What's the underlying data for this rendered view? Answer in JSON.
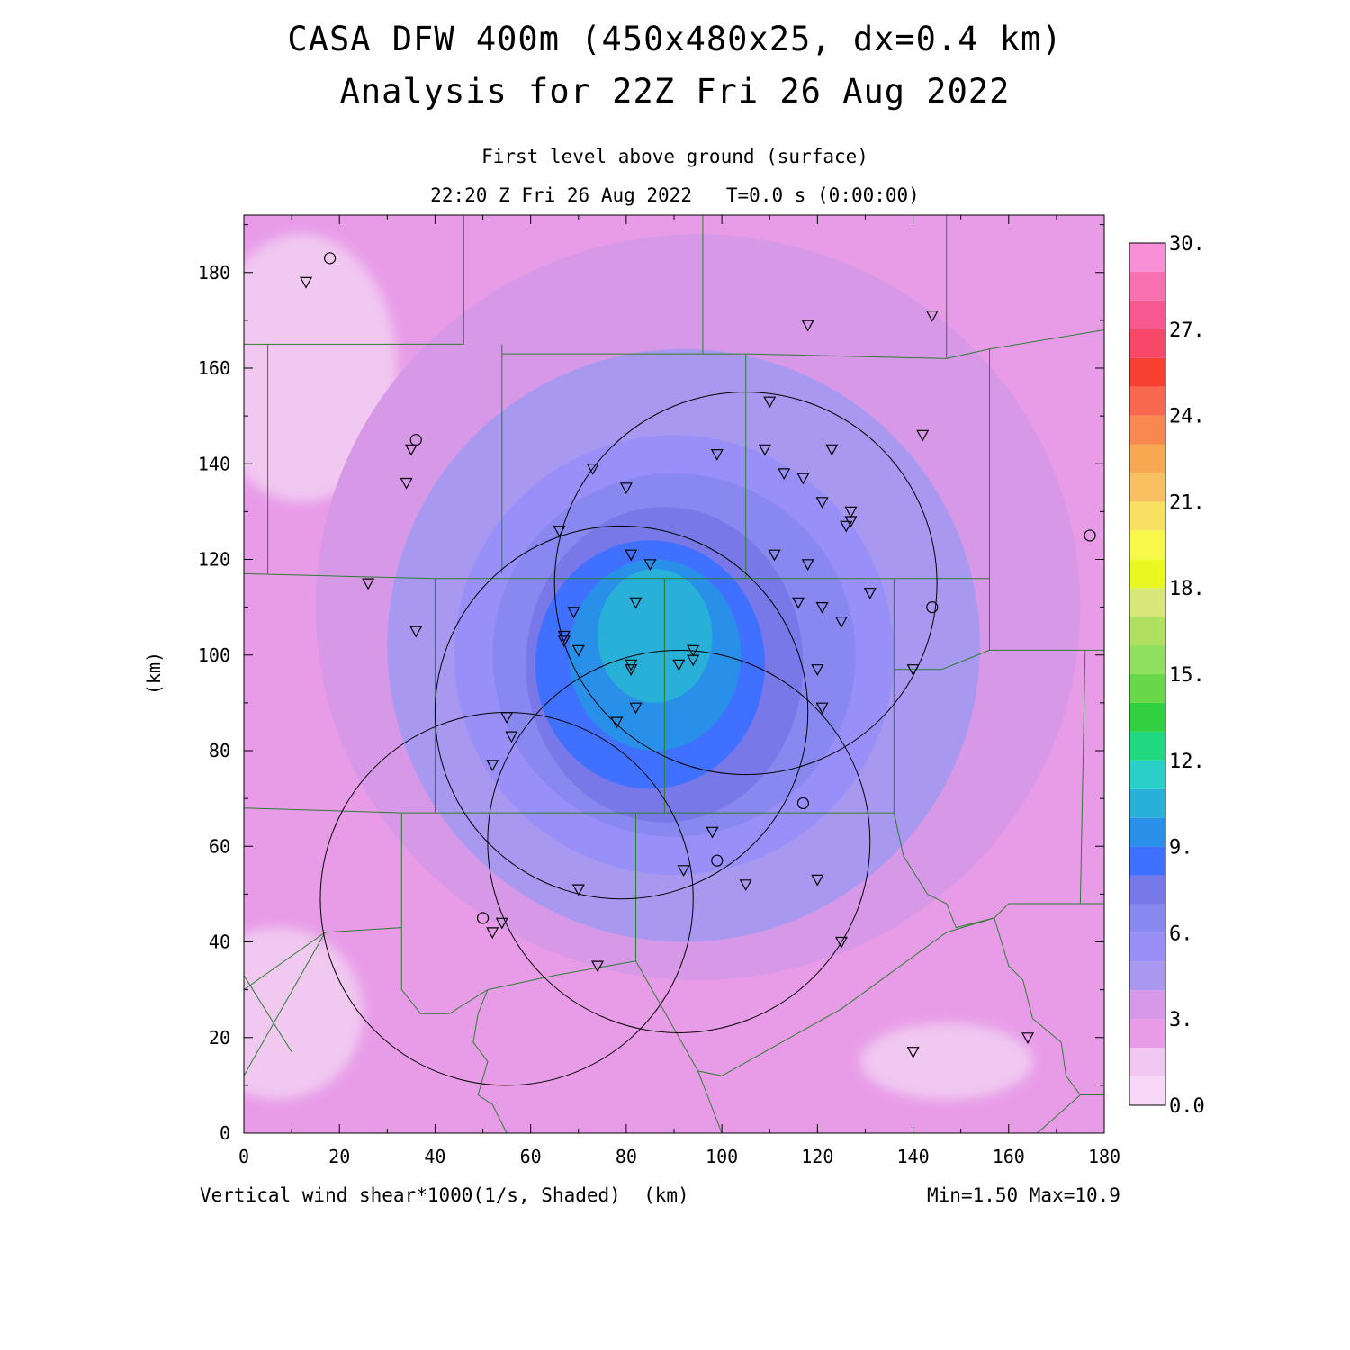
{
  "chart_data": {
    "type": "heatmap",
    "title": "CASA DFW 400m (450x480x25, dx=0.4 km)",
    "subtitle": "Analysis for 22Z Fri 26 Aug 2022",
    "level_label": "First level above ground (surface)",
    "time_label": "22:20 Z Fri 26 Aug 2022   T=0.0 s (0:00:00)",
    "xlabel": "(km)",
    "ylabel": "(km)",
    "field_label": "Vertical wind shear*1000(1/s, Shaded)",
    "stats_label": "Min=1.50 Max=10.9",
    "xlim": [
      0,
      180
    ],
    "ylim": [
      0,
      192
    ],
    "x_ticks": [
      0,
      20,
      40,
      60,
      80,
      100,
      120,
      140,
      160,
      180
    ],
    "y_ticks": [
      0,
      20,
      40,
      60,
      80,
      100,
      120,
      140,
      160,
      180
    ],
    "colorbar": {
      "min": 0.0,
      "max": 30.0,
      "step": 1.0,
      "labels": [
        "0.0",
        "3.",
        "6.",
        "9.",
        "12.",
        "15.",
        "18.",
        "21.",
        "24.",
        "27.",
        "30."
      ],
      "colors": [
        "#f8d8f8",
        "#f0c8f0",
        "#e89ce8",
        "#d898e8",
        "#a898f0",
        "#9890f8",
        "#8888f0",
        "#7878e8",
        "#4070ff",
        "#2890e8",
        "#28b0d8",
        "#28d0c8",
        "#20d880",
        "#30d040",
        "#68d848",
        "#90e060",
        "#b0e060",
        "#d8e878",
        "#e8f820",
        "#f8f848",
        "#f8e060",
        "#f8c060",
        "#f8a850",
        "#f88850",
        "#f86850",
        "#f84030",
        "#f84868",
        "#f85890",
        "#f870b0",
        "#f890d8"
      ]
    },
    "shear_field": [
      {
        "level": 3,
        "x_km": 95,
        "y_km": 110,
        "rx_km": 80,
        "ry_km": 78
      },
      {
        "level": 4,
        "x_km": 92,
        "y_km": 102,
        "rx_km": 62,
        "ry_km": 62
      },
      {
        "level": 5,
        "x_km": 90,
        "y_km": 100,
        "rx_km": 46,
        "ry_km": 46
      },
      {
        "level": 6,
        "x_km": 90,
        "y_km": 100,
        "rx_km": 38,
        "ry_km": 38
      },
      {
        "level": 7,
        "x_km": 88,
        "y_km": 98,
        "rx_km": 29,
        "ry_km": 33
      },
      {
        "level": 8,
        "x_km": 85,
        "y_km": 98,
        "rx_km": 24,
        "ry_km": 26
      },
      {
        "level": 9,
        "x_km": 86,
        "y_km": 100,
        "rx_km": 18,
        "ry_km": 20
      },
      {
        "level": 10,
        "x_km": 86,
        "y_km": 104,
        "rx_km": 12,
        "ry_km": 14
      }
    ],
    "low_areas": [
      {
        "level": 1,
        "x_km": 12,
        "y_km": 160,
        "rx_km": 20,
        "ry_km": 28
      },
      {
        "level": 1,
        "x_km": 7,
        "y_km": 25,
        "rx_km": 18,
        "ry_km": 18
      },
      {
        "level": 1,
        "x_km": 147,
        "y_km": 15,
        "rx_km": 18,
        "ry_km": 8
      }
    ],
    "radar_rings": [
      {
        "x_km": 55,
        "y_km": 49,
        "r_km": 39
      },
      {
        "x_km": 79,
        "y_km": 88,
        "r_km": 39
      },
      {
        "x_km": 91,
        "y_km": 61,
        "r_km": 40
      },
      {
        "x_km": 105,
        "y_km": 115,
        "r_km": 40
      }
    ],
    "stations_triangle": [
      [
        13,
        178
      ],
      [
        118,
        169
      ],
      [
        144,
        171
      ],
      [
        110,
        153
      ],
      [
        35,
        143
      ],
      [
        34,
        136
      ],
      [
        99,
        142
      ],
      [
        109,
        143
      ],
      [
        123,
        143
      ],
      [
        73,
        139
      ],
      [
        113,
        138
      ],
      [
        117,
        137
      ],
      [
        80,
        135
      ],
      [
        142,
        146
      ],
      [
        121,
        132
      ],
      [
        127,
        130
      ],
      [
        127,
        128
      ],
      [
        126,
        127
      ],
      [
        66,
        126
      ],
      [
        81,
        121
      ],
      [
        111,
        121
      ],
      [
        85,
        119
      ],
      [
        118,
        119
      ],
      [
        26,
        115
      ],
      [
        131,
        113
      ],
      [
        82,
        111
      ],
      [
        116,
        111
      ],
      [
        121,
        110
      ],
      [
        69,
        109
      ],
      [
        125,
        107
      ],
      [
        36,
        105
      ],
      [
        67,
        104
      ],
      [
        67,
        103
      ],
      [
        70,
        101
      ],
      [
        94,
        101
      ],
      [
        94,
        99
      ],
      [
        91,
        98
      ],
      [
        81,
        98
      ],
      [
        81,
        97
      ],
      [
        120,
        97
      ],
      [
        140,
        97
      ],
      [
        82,
        89
      ],
      [
        121,
        89
      ],
      [
        55,
        87
      ],
      [
        78,
        86
      ],
      [
        56,
        83
      ],
      [
        52,
        77
      ],
      [
        98,
        63
      ],
      [
        92,
        55
      ],
      [
        120,
        53
      ],
      [
        105,
        52
      ],
      [
        70,
        51
      ],
      [
        54,
        44
      ],
      [
        52,
        42
      ],
      [
        125,
        40
      ],
      [
        74,
        35
      ],
      [
        164,
        20
      ],
      [
        140,
        17
      ]
    ],
    "stations_circle": [
      [
        18,
        183
      ],
      [
        36,
        145
      ],
      [
        177,
        125
      ],
      [
        144,
        110
      ],
      [
        117,
        69
      ],
      [
        99,
        57
      ],
      [
        50,
        45
      ]
    ],
    "county_lines": [
      [
        [
          0,
          165
        ],
        [
          46,
          165
        ],
        [
          46,
          192
        ]
      ],
      [
        [
          5,
          165
        ],
        [
          5,
          117
        ]
      ],
      [
        [
          54,
          165
        ],
        [
          54,
          117
        ]
      ],
      [
        [
          54,
          163
        ],
        [
          96,
          163
        ],
        [
          96,
          192
        ]
      ],
      [
        [
          96,
          163
        ],
        [
          105,
          163
        ],
        [
          147,
          162
        ],
        [
          147,
          192
        ]
      ],
      [
        [
          105,
          163
        ],
        [
          105,
          116
        ]
      ],
      [
        [
          147,
          162
        ],
        [
          156,
          164
        ],
        [
          180,
          168
        ]
      ],
      [
        [
          156,
          164
        ],
        [
          156,
          101
        ]
      ],
      [
        [
          0,
          117
        ],
        [
          40,
          116
        ],
        [
          105,
          116
        ],
        [
          136,
          116
        ],
        [
          156,
          116
        ]
      ],
      [
        [
          156,
          101
        ],
        [
          176,
          101
        ],
        [
          180,
          101
        ]
      ],
      [
        [
          40,
          116
        ],
        [
          40,
          67
        ]
      ],
      [
        [
          88,
          116
        ],
        [
          88,
          67
        ]
      ],
      [
        [
          136,
          116
        ],
        [
          136,
          67
        ]
      ],
      [
        [
          136,
          97
        ],
        [
          146,
          97
        ],
        [
          156,
          101
        ]
      ],
      [
        [
          0,
          68
        ],
        [
          33,
          67
        ],
        [
          88,
          67
        ],
        [
          136,
          67
        ]
      ],
      [
        [
          33,
          67
        ],
        [
          33,
          30
        ]
      ],
      [
        [
          33,
          43
        ],
        [
          17,
          42
        ],
        [
          0,
          12
        ]
      ],
      [
        [
          0,
          33
        ],
        [
          10,
          17
        ]
      ],
      [
        [
          17,
          42
        ],
        [
          0,
          30
        ]
      ],
      [
        [
          33,
          30
        ],
        [
          37,
          25
        ],
        [
          43,
          25
        ],
        [
          51,
          30
        ],
        [
          65,
          33
        ],
        [
          82,
          36
        ]
      ],
      [
        [
          82,
          67
        ],
        [
          82,
          36
        ],
        [
          95,
          13
        ],
        [
          100,
          12
        ],
        [
          125,
          26
        ],
        [
          147,
          42
        ]
      ],
      [
        [
          147,
          42
        ],
        [
          157,
          45
        ],
        [
          160,
          48
        ],
        [
          176,
          48
        ],
        [
          180,
          48
        ]
      ],
      [
        [
          176,
          101
        ],
        [
          175,
          48
        ]
      ],
      [
        [
          136,
          67
        ],
        [
          138,
          58
        ],
        [
          143,
          50
        ],
        [
          147,
          48
        ],
        [
          149,
          43
        ],
        [
          157,
          45
        ]
      ],
      [
        [
          95,
          13
        ],
        [
          100,
          0
        ]
      ],
      [
        [
          51,
          30
        ],
        [
          49,
          25
        ],
        [
          48,
          19
        ],
        [
          51,
          15
        ],
        [
          49,
          8
        ],
        [
          52,
          6
        ],
        [
          55,
          0
        ]
      ],
      [
        [
          157,
          45
        ],
        [
          160,
          35
        ],
        [
          163,
          32
        ],
        [
          165,
          24
        ],
        [
          171,
          19
        ],
        [
          172,
          12
        ],
        [
          175,
          8
        ],
        [
          180,
          8
        ]
      ],
      [
        [
          166,
          0
        ],
        [
          175,
          8
        ]
      ]
    ]
  }
}
